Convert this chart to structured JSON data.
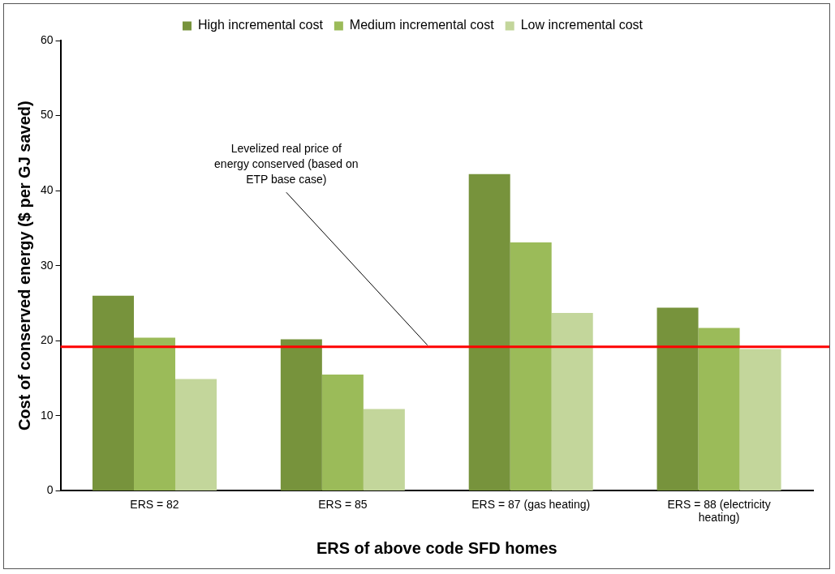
{
  "chart_data": {
    "type": "bar",
    "xlabel": "ERS of above code SFD homes",
    "ylabel": "Cost of conserved energy ($ per GJ saved)",
    "categories": [
      "ERS = 82",
      "ERS = 85",
      "ERS = 87 (gas heating)",
      "ERS = 88 (electricity heating)"
    ],
    "series": [
      {
        "name": "High incremental cost",
        "color": "#77933c",
        "values": [
          26,
          20.2,
          42.2,
          24.4
        ]
      },
      {
        "name": "Medium incremental cost",
        "color": "#9bbb59",
        "values": [
          20.4,
          15.5,
          33.1,
          21.7
        ]
      },
      {
        "name": "Low incremental cost",
        "color": "#c3d69b",
        "values": [
          14.9,
          10.9,
          23.7,
          18.9
        ]
      }
    ],
    "ylim": [
      0,
      60
    ],
    "yticks": [
      0,
      10,
      20,
      30,
      40,
      50,
      60
    ],
    "grid": false,
    "legend": "top",
    "ref_lines": [
      {
        "axis": "y",
        "value": 19.2,
        "label": "Levelized real price of energy conserved (based on ETP base case)",
        "color": "#ff0000"
      }
    ]
  }
}
